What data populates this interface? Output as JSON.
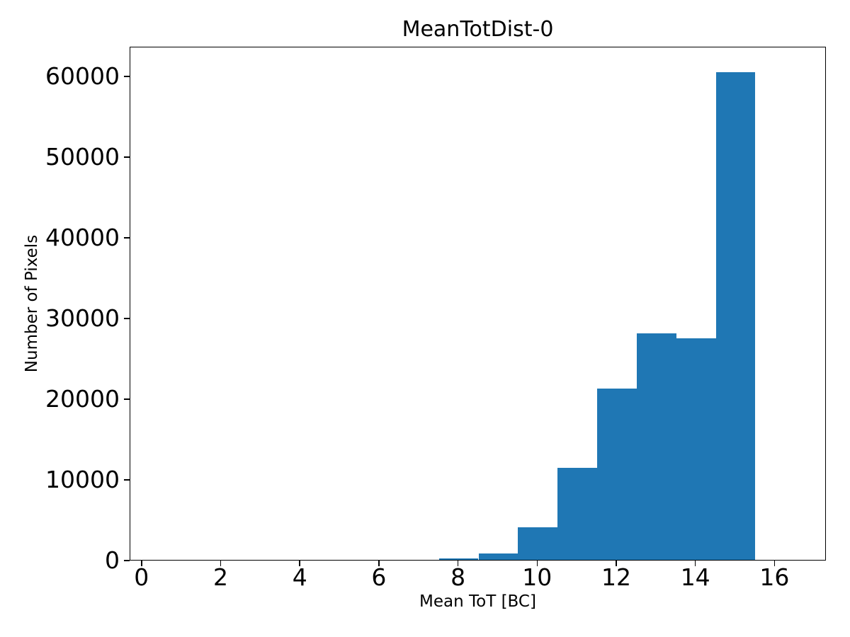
{
  "chart_data": {
    "type": "bar",
    "subtype": "histogram",
    "title": "MeanTotDist-0",
    "xlabel": "Mean ToT [BC]",
    "ylabel": "Number of Pixels",
    "bar_color": "#1f77b4",
    "background_color": "#ffffff",
    "axis_color": "#000000",
    "bin_width": 1,
    "bin_edges": [
      7.5,
      8.5,
      9.5,
      10.5,
      11.5,
      12.5,
      13.5,
      14.5,
      15.5
    ],
    "counts": [
      200,
      800,
      4000,
      11400,
      21200,
      28100,
      27500,
      60500
    ],
    "x_ticks": [
      0,
      2,
      4,
      6,
      8,
      10,
      12,
      14,
      16
    ],
    "y_ticks": [
      0,
      10000,
      20000,
      30000,
      40000,
      50000,
      60000
    ],
    "xlim": [
      -0.3,
      17.3
    ],
    "ylim": [
      0,
      63700
    ],
    "grid": false,
    "legend": "none"
  }
}
